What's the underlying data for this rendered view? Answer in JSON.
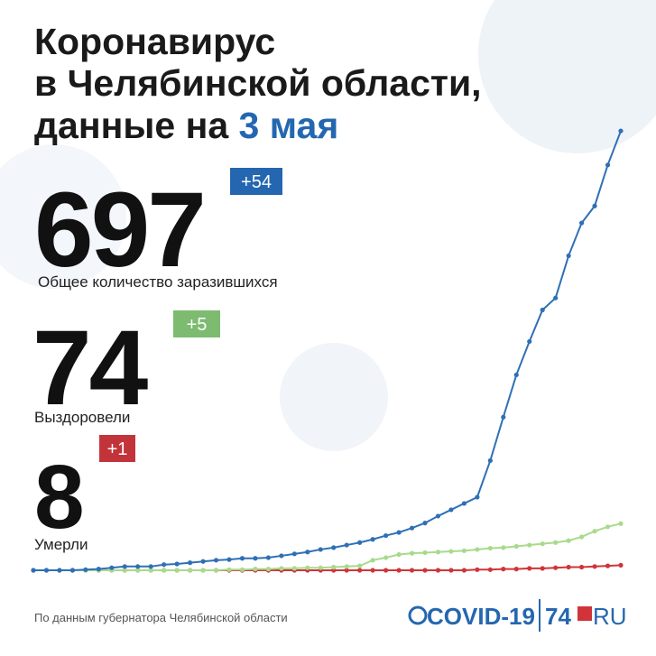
{
  "chart_data": {
    "type": "line",
    "title_lines": [
      "Коронавирус",
      "в Челябинской области,",
      "данные на"
    ],
    "title_date": "3 мая",
    "stats": [
      {
        "value": 697,
        "change": "+54",
        "label": "Общее количество заразившихся",
        "color": "#2467b0"
      },
      {
        "value": 74,
        "change": "+5",
        "label": "Выздоровели",
        "color": "#7dbb70"
      },
      {
        "value": 8,
        "change": "+1",
        "label": "Умерли",
        "color": "#c3343a"
      }
    ],
    "categories": [
      null,
      null,
      null,
      null,
      null,
      null,
      null,
      null,
      null,
      null,
      null,
      null,
      null,
      null,
      null,
      null,
      null,
      null,
      null,
      null,
      null,
      null,
      null,
      null,
      null,
      null,
      null,
      null,
      null,
      null,
      null,
      null,
      null,
      null,
      null,
      null,
      null,
      null,
      null,
      null,
      null,
      null,
      null,
      null,
      null,
      null
    ],
    "series": [
      {
        "name": "Общее количество заразившихся",
        "color": "#2f70b5",
        "values": [
          0,
          0,
          0,
          0,
          1,
          2,
          4,
          6,
          6,
          6,
          9,
          10,
          12,
          14,
          16,
          17,
          19,
          19,
          20,
          23,
          26,
          29,
          33,
          36,
          40,
          44,
          49,
          55,
          60,
          67,
          75,
          86,
          96,
          106,
          116,
          174,
          243,
          310,
          363,
          413,
          432,
          499,
          551,
          578,
          643,
          697
        ]
      },
      {
        "name": "Выздоровели",
        "color": "#a9da8c",
        "values": [
          0,
          0,
          0,
          0,
          0,
          0,
          0,
          0,
          0,
          0,
          0,
          0,
          0,
          0,
          0,
          1,
          1,
          2,
          2,
          3,
          3,
          4,
          4,
          5,
          6,
          7,
          16,
          20,
          25,
          27,
          28,
          29,
          30,
          31,
          33,
          35,
          36,
          38,
          40,
          42,
          44,
          47,
          53,
          62,
          69,
          74
        ]
      },
      {
        "name": "Умерли",
        "color": "#d0343a",
        "values": [
          0,
          0,
          0,
          0,
          0,
          0,
          0,
          0,
          0,
          0,
          0,
          0,
          0,
          0,
          0,
          0,
          0,
          0,
          0,
          0,
          0,
          0,
          0,
          0,
          0,
          0,
          0,
          0,
          0,
          0,
          0,
          0,
          0,
          0,
          1,
          1,
          2,
          2,
          3,
          3,
          4,
          5,
          5,
          6,
          7,
          8
        ]
      }
    ],
    "ylim": [
      0,
      700
    ],
    "source": "По данным губернатора Челябинской области",
    "logo": {
      "covid": "COVID-19",
      "num": "74",
      "ru": "RU"
    }
  }
}
